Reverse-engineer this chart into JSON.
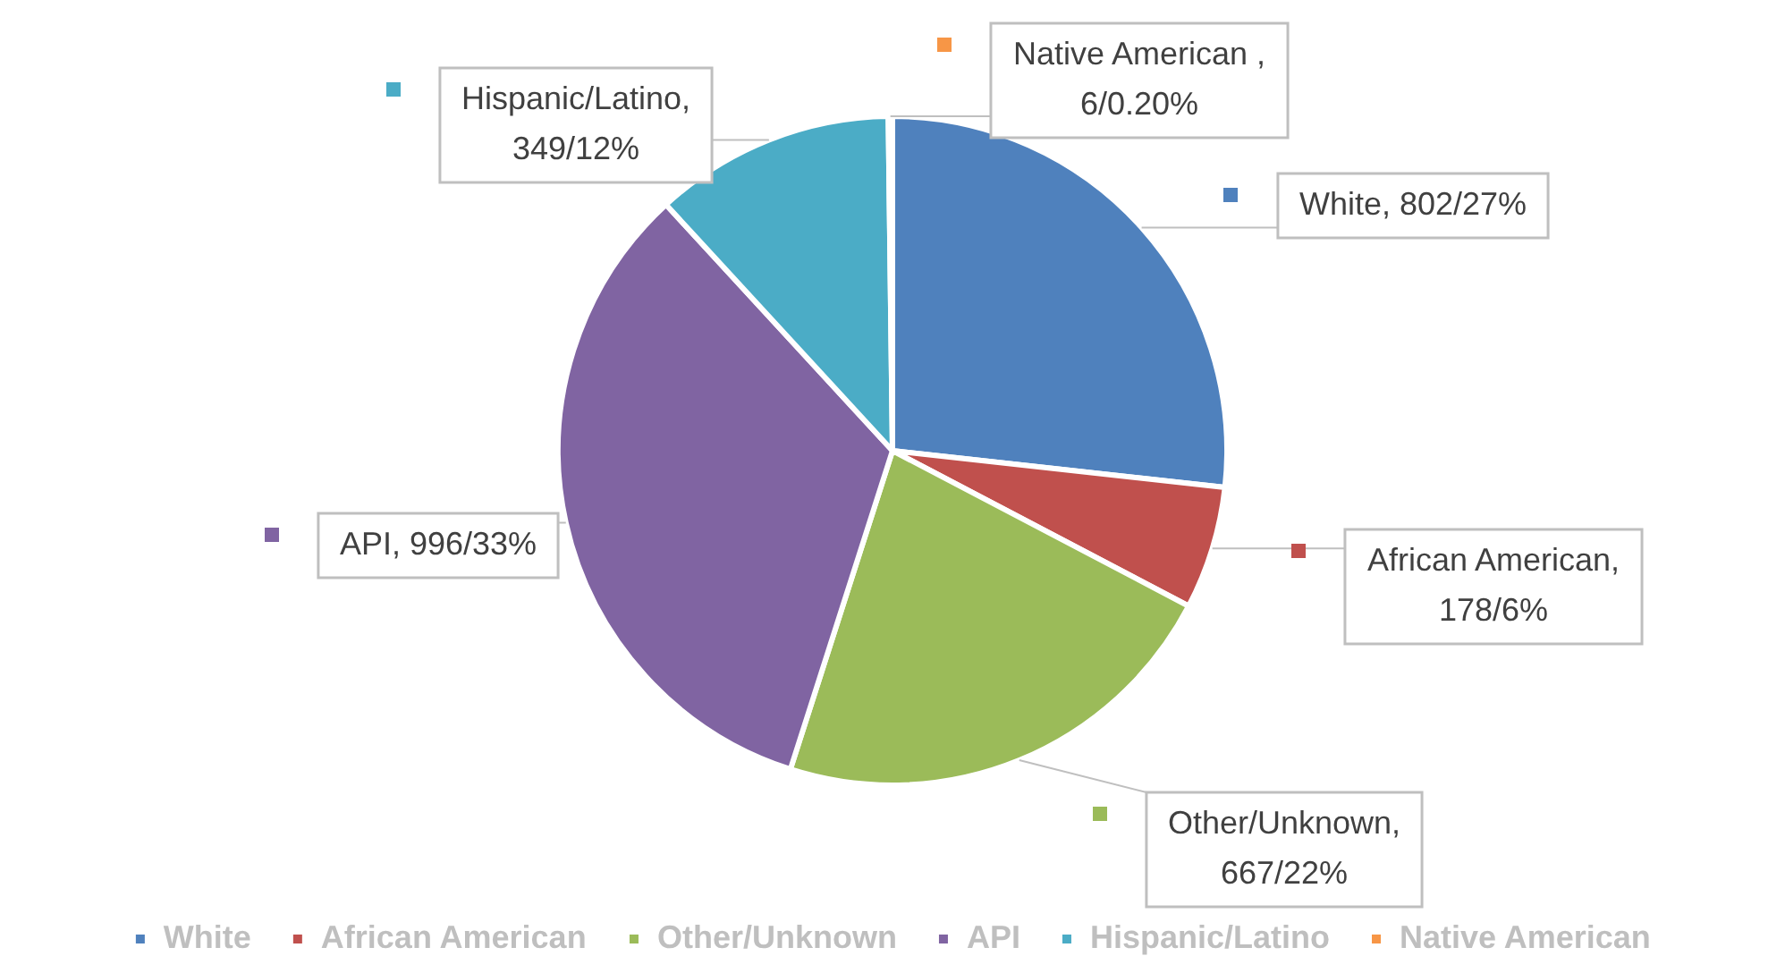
{
  "chart_data": {
    "type": "pie",
    "categories": [
      "White",
      "African American",
      "Other/Unknown",
      "API",
      "Hispanic/Latino",
      "Native American"
    ],
    "values": [
      802,
      178,
      667,
      996,
      349,
      6
    ],
    "value_labels": [
      "White, 802/27%",
      "African American, 178/6%",
      "Other/Unknown, 667/22%",
      "API, 996/33%",
      "Hispanic/Latino, 349/12%",
      "Native American , 6/0.20%"
    ],
    "colors": [
      "#4f81bd",
      "#c0504d",
      "#9bbb59",
      "#8064a2",
      "#4bacc6",
      "#f79646"
    ],
    "legend": "bottom"
  }
}
